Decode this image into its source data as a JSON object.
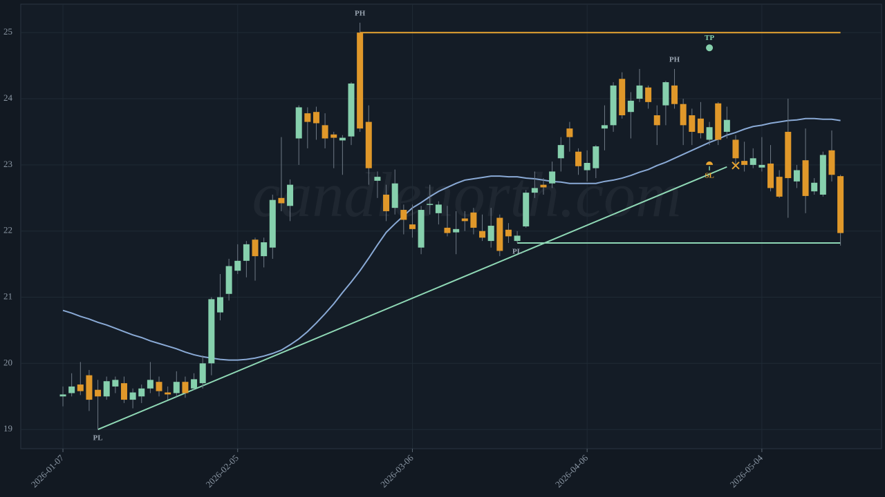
{
  "chart_data": {
    "type": "candlestick",
    "watermark": "candlenorth.com",
    "categories": [
      "2026-01-07",
      null,
      null,
      null,
      null,
      null,
      null,
      null,
      null,
      null,
      null,
      null,
      null,
      null,
      null,
      null,
      null,
      null,
      null,
      null,
      "2026-02-05",
      null,
      null,
      null,
      null,
      null,
      null,
      null,
      null,
      null,
      null,
      null,
      null,
      null,
      null,
      null,
      null,
      null,
      null,
      null,
      "2026-03-06",
      null,
      null,
      null,
      null,
      null,
      null,
      null,
      null,
      null,
      null,
      null,
      null,
      null,
      null,
      null,
      null,
      null,
      null,
      null,
      "2026-04-06",
      null,
      null,
      null,
      null,
      null,
      null,
      null,
      null,
      null,
      null,
      null,
      null,
      null,
      null,
      null,
      null,
      null,
      null,
      null,
      "2026-05-04",
      null,
      null,
      null,
      null,
      null,
      null,
      null,
      null,
      null
    ],
    "up_color": "#86d0ad",
    "down_color": "#e0982a",
    "open": [
      19.5,
      19.55,
      19.68,
      19.82,
      19.6,
      19.5,
      19.65,
      19.7,
      19.45,
      19.5,
      19.62,
      19.72,
      19.56,
      19.55,
      19.72,
      19.62,
      19.7,
      20.0,
      20.77,
      21.05,
      21.4,
      21.55,
      21.87,
      21.62,
      21.75,
      22.5,
      22.38,
      23.4,
      23.78,
      23.8,
      23.6,
      23.46,
      23.37,
      23.43,
      25.0,
      23.65,
      22.76,
      22.55,
      22.35,
      22.32,
      22.1,
      21.75,
      22.4,
      22.27,
      22.05,
      21.98,
      22.19,
      22.28,
      22.0,
      21.85,
      22.2,
      22.02,
      21.85,
      22.07,
      22.58,
      22.7,
      22.72,
      23.1,
      23.55,
      23.2,
      22.92,
      22.95,
      23.55,
      23.6,
      24.3,
      23.8,
      24.0,
      24.17,
      23.75,
      23.9,
      24.2,
      23.92,
      23.75,
      23.7,
      23.38,
      23.93,
      23.5,
      23.38,
      23.06,
      23.0,
      22.96,
      23.02,
      22.82,
      23.5,
      22.75,
      23.07,
      22.6,
      22.55,
      23.22,
      22.83
    ],
    "high": [
      19.65,
      19.85,
      20.02,
      19.9,
      19.75,
      19.8,
      19.8,
      19.8,
      19.62,
      19.68,
      20.02,
      19.8,
      19.65,
      19.88,
      19.8,
      19.85,
      20.12,
      21.0,
      21.35,
      21.58,
      21.8,
      21.85,
      21.9,
      21.9,
      22.55,
      23.42,
      22.78,
      23.9,
      23.87,
      23.88,
      23.78,
      23.5,
      23.45,
      24.25,
      25.15,
      23.9,
      22.9,
      22.7,
      22.93,
      22.4,
      22.4,
      22.38,
      22.7,
      22.45,
      22.38,
      22.3,
      22.3,
      22.35,
      22.25,
      22.35,
      22.25,
      22.12,
      22.0,
      22.62,
      22.9,
      22.8,
      23.05,
      23.42,
      23.65,
      23.25,
      23.22,
      23.3,
      23.9,
      24.25,
      24.4,
      24.1,
      24.45,
      24.2,
      23.9,
      24.27,
      24.45,
      24.0,
      23.85,
      23.95,
      23.65,
      23.95,
      23.88,
      23.45,
      23.35,
      23.25,
      23.42,
      23.3,
      22.92,
      24.0,
      23.0,
      23.55,
      22.8,
      23.2,
      23.52,
      22.85
    ],
    "low": [
      19.35,
      19.5,
      19.52,
      19.28,
      19.0,
      19.45,
      19.55,
      19.4,
      19.32,
      19.4,
      19.55,
      19.5,
      19.45,
      19.5,
      19.48,
      19.6,
      19.62,
      19.82,
      20.65,
      20.95,
      21.35,
      21.3,
      21.25,
      21.45,
      21.58,
      22.3,
      22.15,
      23.0,
      23.25,
      23.38,
      23.25,
      22.95,
      22.85,
      23.3,
      23.5,
      22.7,
      22.5,
      22.15,
      22.25,
      21.95,
      21.9,
      21.65,
      22.25,
      22.1,
      21.92,
      21.65,
      22.0,
      21.95,
      21.85,
      21.75,
      21.62,
      21.82,
      21.82,
      22.05,
      22.5,
      22.55,
      22.65,
      22.9,
      23.2,
      22.85,
      22.75,
      22.8,
      23.22,
      23.5,
      23.7,
      23.4,
      23.95,
      23.85,
      23.3,
      23.6,
      23.85,
      23.3,
      23.3,
      23.4,
      23.3,
      23.3,
      23.4,
      23.0,
      22.9,
      22.95,
      22.9,
      22.6,
      22.5,
      22.2,
      22.65,
      22.27,
      22.55,
      22.52,
      22.75,
      21.78
    ],
    "close": [
      19.53,
      19.65,
      19.58,
      19.45,
      19.5,
      19.73,
      19.75,
      19.45,
      19.56,
      19.62,
      19.75,
      19.58,
      19.53,
      19.72,
      19.55,
      19.76,
      20.0,
      20.97,
      21.0,
      21.47,
      21.55,
      21.8,
      21.62,
      21.83,
      22.47,
      22.42,
      22.7,
      23.87,
      23.65,
      23.63,
      23.4,
      23.41,
      23.41,
      24.23,
      23.55,
      22.95,
      22.82,
      22.3,
      22.72,
      22.17,
      22.03,
      22.32,
      22.41,
      22.4,
      21.97,
      22.03,
      22.15,
      22.05,
      21.9,
      22.08,
      21.7,
      21.92,
      21.93,
      22.58,
      22.65,
      22.66,
      22.9,
      23.3,
      23.42,
      22.98,
      23.03,
      23.28,
      23.6,
      24.2,
      23.75,
      23.97,
      24.2,
      23.95,
      23.6,
      24.25,
      23.92,
      23.6,
      23.5,
      23.48,
      23.57,
      23.38,
      23.68,
      23.1,
      23.0,
      23.1,
      23.0,
      22.65,
      22.52,
      22.8,
      22.92,
      22.53,
      22.73,
      23.15,
      22.85,
      21.97
    ],
    "ma": {
      "color": "#8aaad6",
      "values": [
        20.8,
        20.76,
        20.71,
        20.67,
        20.62,
        20.58,
        20.53,
        20.48,
        20.43,
        20.39,
        20.34,
        20.3,
        20.26,
        20.22,
        20.17,
        20.13,
        20.1,
        20.08,
        20.06,
        20.05,
        20.05,
        20.06,
        20.08,
        20.11,
        20.15,
        20.2,
        20.28,
        20.37,
        20.48,
        20.61,
        20.75,
        20.9,
        21.07,
        21.23,
        21.4,
        21.59,
        21.79,
        21.98,
        22.11,
        22.23,
        22.35,
        22.43,
        22.52,
        22.6,
        22.66,
        22.72,
        22.77,
        22.79,
        22.81,
        22.83,
        22.83,
        22.82,
        22.82,
        22.8,
        22.79,
        22.77,
        22.75,
        22.74,
        22.72,
        22.72,
        22.72,
        22.72,
        22.75,
        22.77,
        22.8,
        22.84,
        22.89,
        22.93,
        22.99,
        23.04,
        23.1,
        23.16,
        23.22,
        23.28,
        23.34,
        23.39,
        23.45,
        23.49,
        23.54,
        23.58,
        23.6,
        23.63,
        23.65,
        23.67,
        23.68,
        23.7,
        23.7,
        23.69,
        23.69,
        23.67
      ]
    },
    "lines": [
      {
        "color": "#8fd8b5",
        "from": [
          4,
          19.0
        ],
        "to": [
          76,
          22.97
        ]
      },
      {
        "color": "#8fd8b5",
        "from": [
          52,
          21.82
        ],
        "to": [
          89,
          21.82
        ]
      },
      {
        "color": "#e8a532",
        "from": [
          34,
          25.0
        ],
        "to": [
          89,
          25.0
        ]
      }
    ],
    "pivots": [
      {
        "label": "PL",
        "index": 4,
        "value": 19.0
      },
      {
        "label": "PH",
        "index": 34,
        "value": 25.15
      },
      {
        "label": "PL",
        "index": 52,
        "value": 21.82
      },
      {
        "label": "PH",
        "index": 70,
        "value": 24.45
      }
    ],
    "take_profit": {
      "label": "TP",
      "index": 74,
      "value": 24.77,
      "color": "#86d0ad"
    },
    "stop_loss": {
      "label": "SL",
      "index": 74,
      "value": 23.0,
      "color": "#e8a532"
    },
    "exit": {
      "index": 77,
      "value": 22.99,
      "color": "#e8a532"
    },
    "xlim": [
      -4.83,
      93.7
    ],
    "ylim": [
      18.71,
      25.43
    ],
    "yticks": [
      19,
      20,
      21,
      22,
      23,
      24,
      25
    ],
    "grid": true
  }
}
